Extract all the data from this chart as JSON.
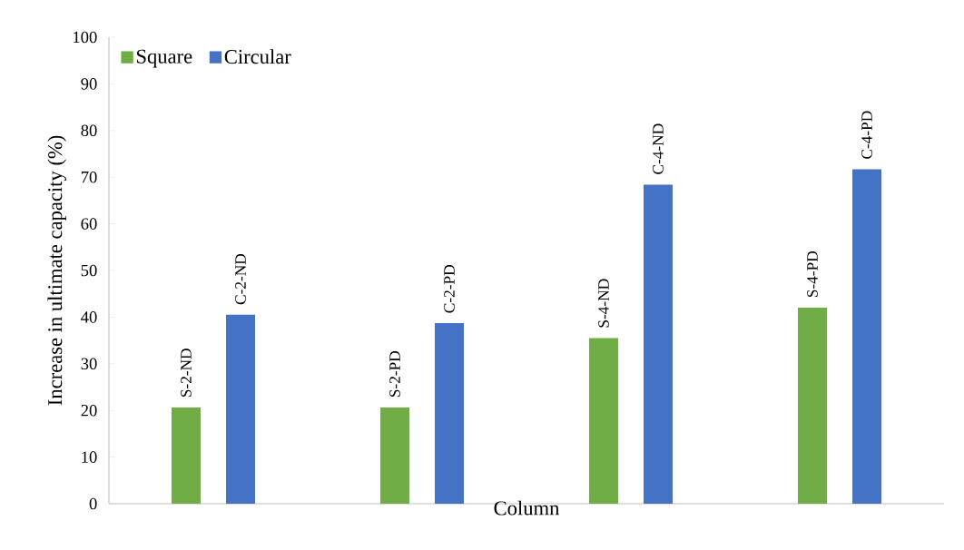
{
  "chart_data": {
    "type": "bar",
    "xlabel": "Column",
    "ylabel": "Increase in ultimate capacity (%)",
    "categories": [
      null,
      null,
      null,
      null
    ],
    "series": [
      {
        "name": "Square",
        "color": "#70ad47",
        "values": [
          20.6,
          20.6,
          35.5,
          42.0
        ],
        "value_labels": [
          "S-2-ND",
          "S-2-PD",
          "S-4-ND",
          "S-4-PD"
        ]
      },
      {
        "name": "Circular",
        "color": "#4472c4",
        "values": [
          40.5,
          38.7,
          68.4,
          71.7
        ],
        "value_labels": [
          "C-2-ND",
          "C-2-PD",
          "C-4-ND",
          "C-4-PD"
        ]
      }
    ],
    "ylim": [
      0,
      100
    ],
    "yticks": [
      0,
      10,
      20,
      30,
      40,
      50,
      60,
      70,
      80,
      90,
      100
    ],
    "grid": false,
    "legend": "top left"
  }
}
